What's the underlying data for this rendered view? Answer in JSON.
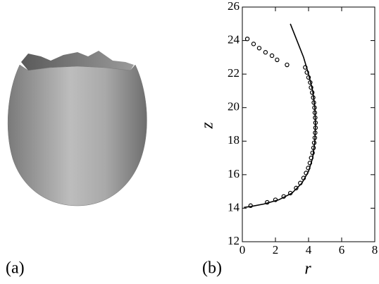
{
  "panel_labels": [
    "(a)",
    "(b)"
  ],
  "chart_data": {
    "type": "line",
    "xlabel": "r",
    "ylabel": "z",
    "xlim": [
      0,
      8
    ],
    "ylim": [
      12,
      26
    ],
    "xticks": [
      0,
      2,
      4,
      6,
      8
    ],
    "yticks": [
      12,
      14,
      16,
      18,
      20,
      22,
      24,
      26
    ],
    "series": [
      {
        "type": "line",
        "color": "#000000",
        "x": [
          2.9,
          3.3,
          3.7,
          4.0,
          4.25,
          4.38,
          4.42,
          4.38,
          4.25,
          4.0,
          3.6,
          3.0,
          2.2,
          1.3,
          0.5,
          0.1
        ],
        "y": [
          25,
          24,
          23,
          22,
          21,
          20,
          19,
          18,
          17,
          16.2,
          15.5,
          14.9,
          14.5,
          14.25,
          14.1,
          14.05
        ]
      },
      {
        "type": "scatter",
        "color": "#000000",
        "x": [
          0.3,
          0.68,
          1.02,
          1.4,
          1.79,
          2.1,
          2.7,
          3.8,
          3.9,
          4.0,
          4.1,
          4.15,
          4.22,
          4.28,
          4.32,
          4.36,
          4.38,
          4.4,
          4.42,
          4.42,
          4.4,
          4.38,
          4.34,
          4.3,
          4.24,
          4.16,
          4.08,
          3.98,
          3.85,
          3.7,
          3.5,
          3.25,
          2.9,
          2.5,
          2.0,
          1.5,
          0.5
        ],
        "y": [
          24.1,
          23.8,
          23.55,
          23.3,
          23.1,
          22.85,
          22.55,
          22.4,
          22.1,
          21.8,
          21.5,
          21.2,
          20.9,
          20.6,
          20.3,
          20.0,
          19.7,
          19.4,
          19.1,
          18.8,
          18.5,
          18.2,
          17.9,
          17.6,
          17.3,
          17.0,
          16.7,
          16.4,
          16.1,
          15.8,
          15.5,
          15.2,
          14.9,
          14.7,
          14.5,
          14.35,
          14.15
        ]
      }
    ]
  }
}
